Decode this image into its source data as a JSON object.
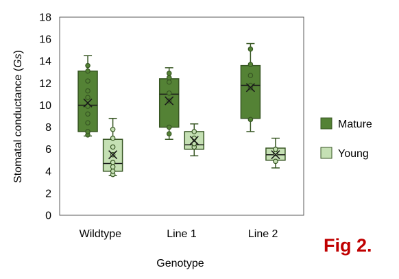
{
  "chart_data": {
    "type": "box",
    "xlabel": "Genotype",
    "ylabel": "Stomatal conductance (",
    "ylabel_italic": "Gs",
    "ylabel_suffix": ")",
    "ylim": [
      0,
      18
    ],
    "yticks": [
      0,
      2,
      4,
      6,
      8,
      10,
      12,
      14,
      16,
      18
    ],
    "categories": [
      "Wildtype",
      "Line 1",
      "Line 2"
    ],
    "grid": false,
    "legend_position": "right",
    "series": [
      {
        "name": "Mature",
        "fill": "#548235",
        "stroke": "#375623",
        "boxes": [
          {
            "min": 7.2,
            "q1": 7.6,
            "median": 10.0,
            "q3": 13.1,
            "max": 14.5,
            "mean": 10.2,
            "points": [
              7.3,
              7.6,
              8.4,
              9.2,
              9.9,
              10.7,
              11.3,
              12.2,
              13.1,
              13.6
            ]
          },
          {
            "min": 6.9,
            "q1": 8.0,
            "median": 11.0,
            "q3": 12.4,
            "max": 13.4,
            "mean": 10.4,
            "points": [
              7.4,
              8.0,
              10.4,
              11.1,
              12.1,
              12.5,
              12.9
            ]
          },
          {
            "min": 7.6,
            "q1": 8.8,
            "median": 11.8,
            "q3": 13.6,
            "max": 15.6,
            "mean": 11.6,
            "points": [
              8.7,
              11.6,
              11.8,
              12.7,
              13.7,
              15.1
            ]
          }
        ]
      },
      {
        "name": "Young",
        "fill": "#c5e0b4",
        "stroke": "#375623",
        "boxes": [
          {
            "min": 3.6,
            "q1": 4.0,
            "median": 4.7,
            "q3": 6.9,
            "max": 8.8,
            "mean": 5.5,
            "points": [
              3.7,
              4.0,
              4.4,
              4.8,
              5.5,
              6.2,
              7.0,
              7.8
            ]
          },
          {
            "min": 5.4,
            "q1": 6.0,
            "median": 6.4,
            "q3": 7.6,
            "max": 8.3,
            "mean": 6.8,
            "points": [
              6.2,
              6.5,
              7.0,
              7.6
            ]
          },
          {
            "min": 4.3,
            "q1": 5.0,
            "median": 5.5,
            "q3": 6.1,
            "max": 7.0,
            "mean": 5.5,
            "points": [
              4.9,
              5.6,
              6.0
            ]
          }
        ]
      }
    ]
  },
  "figure_label": "Fig 2."
}
